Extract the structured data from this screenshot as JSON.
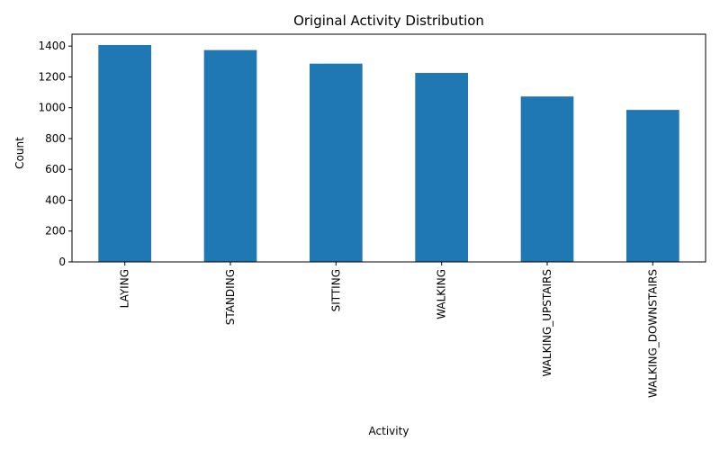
{
  "chart_data": {
    "type": "bar",
    "title": "Original Activity Distribution",
    "xlabel": "Activity",
    "ylabel": "Count",
    "categories": [
      "LAYING",
      "STANDING",
      "SITTING",
      "WALKING",
      "WALKING_UPSTAIRS",
      "WALKING_DOWNSTAIRS"
    ],
    "values": [
      1407,
      1374,
      1286,
      1226,
      1073,
      986
    ],
    "ylim": [
      0,
      1477
    ],
    "yticks": [
      0,
      200,
      400,
      600,
      800,
      1000,
      1200,
      1400
    ],
    "grid": false,
    "legend": "none",
    "bar_color": "#1f77b4"
  }
}
